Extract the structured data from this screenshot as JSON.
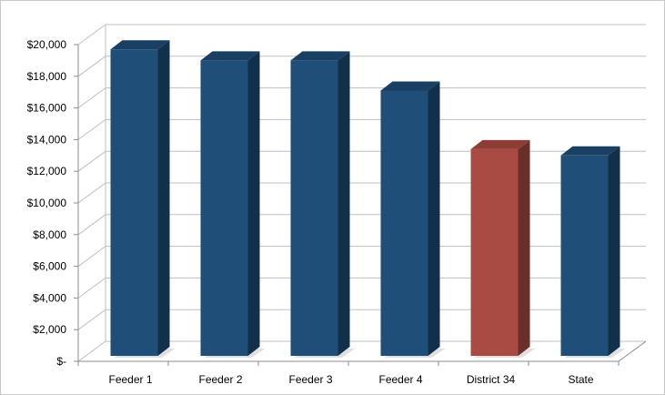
{
  "chart_data": {
    "type": "bar",
    "style": "3d-column",
    "title": "",
    "xlabel": "",
    "ylabel": "",
    "ylim": [
      0,
      20000
    ],
    "y_ticks": [
      0,
      2000,
      4000,
      6000,
      8000,
      10000,
      12000,
      14000,
      16000,
      18000,
      20000
    ],
    "y_tick_labels": [
      "$-",
      "$2,000",
      "$4,000",
      "$6,000",
      "$8,000",
      "$10,000",
      "$12,000",
      "$14,000",
      "$16,000",
      "$18,000",
      "$20,000"
    ],
    "categories": [
      "Feeder 1",
      "Feeder 2",
      "Feeder 3",
      "Feeder 4",
      "District 34",
      "State"
    ],
    "values": [
      19700,
      19000,
      19000,
      17100,
      13400,
      13000
    ],
    "bar_colors": [
      "#1f4e79",
      "#1f4e79",
      "#1f4e79",
      "#1f4e79",
      "#a94b42",
      "#1f4e79"
    ],
    "grid": true,
    "legend": "none"
  }
}
